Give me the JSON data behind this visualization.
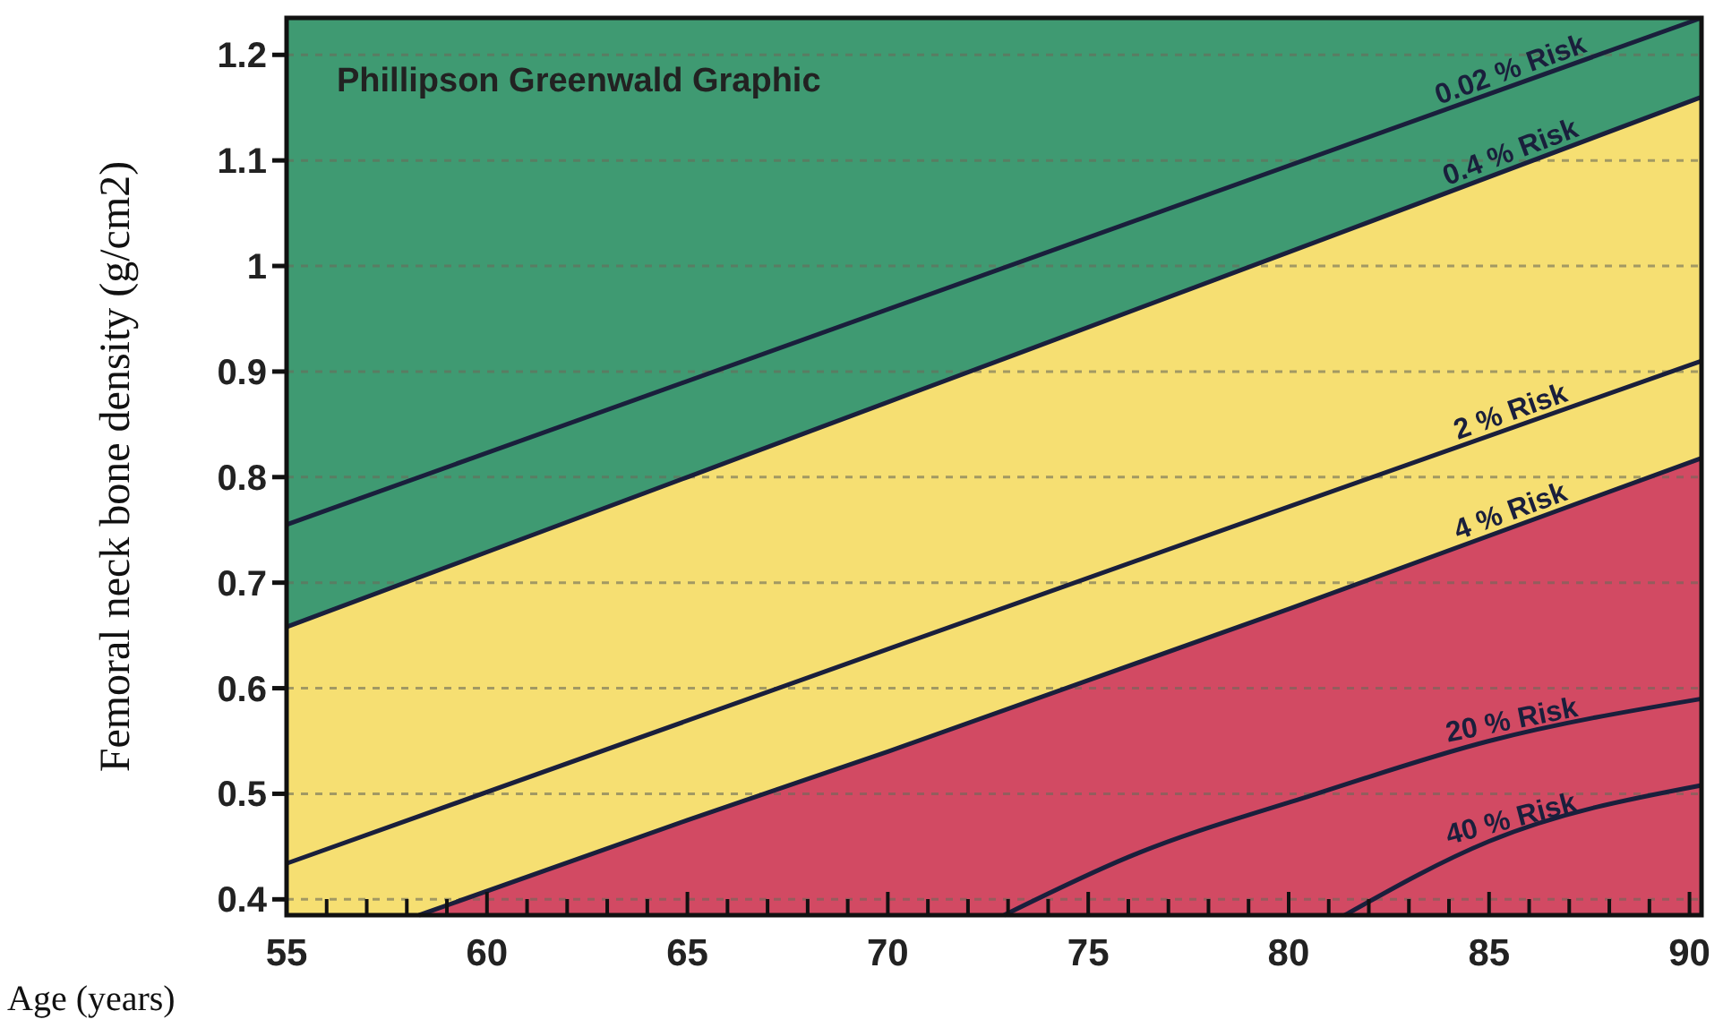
{
  "chart_data": {
    "type": "line",
    "title": "Phillipson Greenwald Graphic",
    "xlabel": "Age (years)",
    "ylabel": "Femoral neck bone density (g/cm2)",
    "xlim": [
      55,
      90.3
    ],
    "ylim": [
      0.385,
      1.235
    ],
    "xticks": [
      55,
      {
        "value": 56,
        "label": null
      },
      {
        "value": 57,
        "label": null
      },
      {
        "value": 58,
        "label": null
      },
      {
        "value": 59,
        "label": null
      },
      60,
      {
        "value": 61,
        "label": null
      },
      {
        "value": 62,
        "label": null
      },
      {
        "value": 63,
        "label": null
      },
      {
        "value": 64,
        "label": null
      },
      65,
      {
        "value": 66,
        "label": null
      },
      {
        "value": 67,
        "label": null
      },
      {
        "value": 68,
        "label": null
      },
      {
        "value": 69,
        "label": null
      },
      70,
      {
        "value": 71,
        "label": null
      },
      {
        "value": 72,
        "label": null
      },
      {
        "value": 73,
        "label": null
      },
      {
        "value": 74,
        "label": null
      },
      75,
      {
        "value": 76,
        "label": null
      },
      {
        "value": 77,
        "label": null
      },
      {
        "value": 78,
        "label": null
      },
      {
        "value": 79,
        "label": null
      },
      80,
      {
        "value": 81,
        "label": null
      },
      {
        "value": 82,
        "label": null
      },
      {
        "value": 83,
        "label": null
      },
      {
        "value": 84,
        "label": null
      },
      85,
      {
        "value": 86,
        "label": null
      },
      {
        "value": 87,
        "label": null
      },
      {
        "value": 88,
        "label": null
      },
      {
        "value": 89,
        "label": null
      },
      90
    ],
    "yticks": [
      0.4,
      0.5,
      0.6,
      0.7,
      0.8,
      0.9,
      1,
      1.1,
      1.2
    ],
    "grid": "y",
    "legend": false,
    "series": [
      {
        "name": "0.02 % Risk",
        "color": "#1a1f3c",
        "x": [
          55,
          90.3
        ],
        "values": [
          0.755,
          1.235
        ]
      },
      {
        "name": "0.4 % Risk",
        "color": "#1a1f3c",
        "x": [
          55,
          65,
          70,
          80,
          90.3
        ],
        "values": [
          0.658,
          0.8,
          0.871,
          1.013,
          1.16
        ]
      },
      {
        "name": "2 % Risk",
        "color": "#1a1f3c",
        "x": [
          55,
          70,
          80,
          90.3
        ],
        "values": [
          0.434,
          0.637,
          0.772,
          0.91
        ]
      },
      {
        "name": "4 % Risk",
        "color": "#1a1f3c",
        "x": [
          58.3,
          65,
          70,
          80,
          90.3
        ],
        "values": [
          0.385,
          0.475,
          0.54,
          0.675,
          0.818
        ]
      },
      {
        "name": "20 % Risk",
        "color": "#1a1f3c",
        "x": [
          72.9,
          76,
          80.7,
          85,
          90.3
        ],
        "values": [
          0.385,
          0.44,
          0.5,
          0.55,
          0.59
        ]
      },
      {
        "name": "40 % Risk",
        "color": "#1a1f3c",
        "x": [
          81.4,
          85,
          90.3
        ],
        "values": [
          0.385,
          0.455,
          0.508
        ]
      }
    ]
  }
}
